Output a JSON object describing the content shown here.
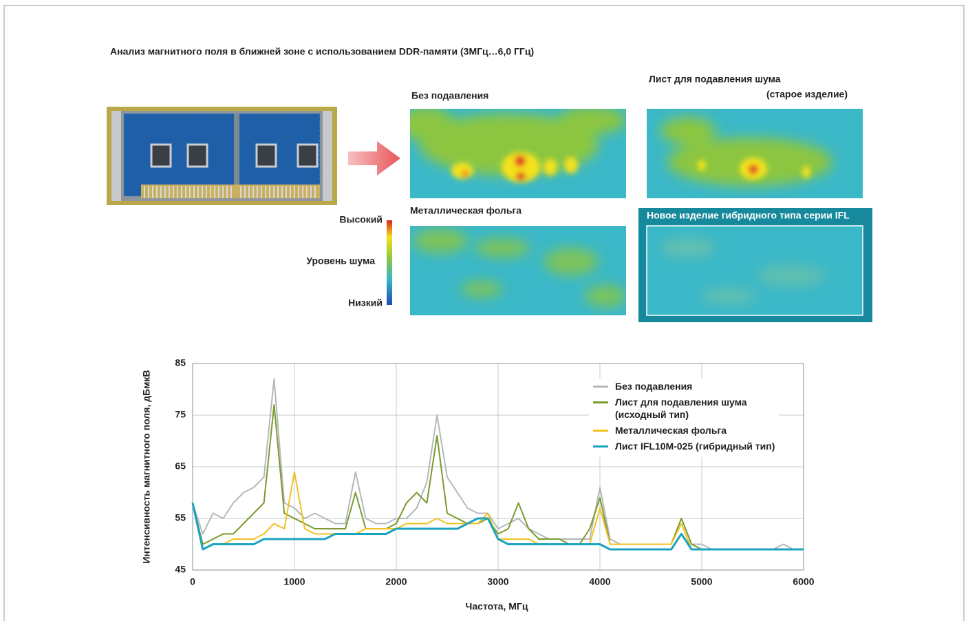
{
  "title": "Анализ магнитного поля в ближней зоне с использованием DDR-памяти (3МГц…6,0 ГГц)",
  "panels": [
    {
      "label": [
        "Без подавления"
      ]
    },
    {
      "label": [
        "Лист для подавления шума",
        "(старое изделие)"
      ]
    },
    {
      "label": [
        "Металлическая фольга"
      ]
    },
    {
      "label": [
        "Новое изделие гибридного типа серии IFL"
      ]
    }
  ],
  "colorbar": {
    "high": "Высокий",
    "mid": "Уровень шума",
    "low": "Низкий"
  },
  "chart_data": {
    "type": "line",
    "xlabel": "Частота, МГц",
    "ylabel": "Интенсивность магнитного поля, дБмкВ",
    "x": [
      0,
      100,
      200,
      300,
      400,
      500,
      600,
      700,
      800,
      900,
      1000,
      1100,
      1200,
      1300,
      1400,
      1500,
      1600,
      1700,
      1800,
      1900,
      2000,
      2100,
      2200,
      2300,
      2400,
      2500,
      2600,
      2700,
      2800,
      2900,
      3000,
      3100,
      3200,
      3300,
      3400,
      3500,
      3600,
      3700,
      3800,
      3900,
      4000,
      4100,
      4200,
      4300,
      4400,
      4500,
      4600,
      4700,
      4800,
      4900,
      5000,
      5100,
      5200,
      5300,
      5400,
      5500,
      5600,
      5700,
      5800,
      5900,
      6000
    ],
    "series": [
      {
        "name": "Без подавления",
        "color": "#b3b8bc",
        "values": [
          58,
          52,
          56,
          55,
          58,
          60,
          61,
          63,
          82,
          58,
          57,
          55,
          56,
          55,
          54,
          54,
          64,
          55,
          54,
          54,
          55,
          55,
          57,
          62,
          75,
          63,
          60,
          57,
          56,
          56,
          53,
          54,
          55,
          53,
          52,
          51,
          51,
          51,
          51,
          51,
          61,
          51,
          50,
          50,
          50,
          50,
          50,
          50,
          55,
          50,
          50,
          49,
          49,
          49,
          49,
          49,
          49,
          49,
          50,
          49,
          49
        ]
      },
      {
        "name": "Лист для подавления шума\n(исходный тип)",
        "color": "#7a9a2c",
        "values": [
          58,
          50,
          51,
          52,
          52,
          54,
          56,
          58,
          77,
          56,
          55,
          54,
          53,
          53,
          53,
          53,
          60,
          53,
          53,
          53,
          54,
          58,
          60,
          58,
          71,
          56,
          55,
          54,
          54,
          55,
          52,
          53,
          58,
          53,
          51,
          51,
          51,
          50,
          50,
          53,
          59,
          50,
          50,
          50,
          50,
          50,
          50,
          50,
          55,
          50,
          49,
          49,
          49,
          49,
          49,
          49,
          49,
          49,
          49,
          49,
          49
        ]
      },
      {
        "name": "Металлическая фольга",
        "color": "#f2c11e",
        "values": [
          58,
          49,
          50,
          50,
          51,
          51,
          51,
          52,
          54,
          53,
          64,
          53,
          52,
          52,
          52,
          52,
          52,
          53,
          53,
          53,
          53,
          54,
          54,
          54,
          55,
          54,
          54,
          54,
          54,
          56,
          51,
          51,
          51,
          51,
          50,
          50,
          50,
          50,
          50,
          50,
          57,
          50,
          50,
          50,
          50,
          50,
          50,
          50,
          54,
          49,
          49,
          49,
          49,
          49,
          49,
          49,
          49,
          49,
          49,
          49,
          49
        ]
      },
      {
        "name": "Лист IFL10M-025 (гибридный тип)",
        "color": "#1aa3bf",
        "values": [
          58,
          49,
          50,
          50,
          50,
          50,
          50,
          51,
          51,
          51,
          51,
          51,
          51,
          51,
          52,
          52,
          52,
          52,
          52,
          52,
          53,
          53,
          53,
          53,
          53,
          53,
          53,
          54,
          55,
          55,
          51,
          50,
          50,
          50,
          50,
          50,
          50,
          50,
          50,
          50,
          50,
          49,
          49,
          49,
          49,
          49,
          49,
          49,
          52,
          49,
          49,
          49,
          49,
          49,
          49,
          49,
          49,
          49,
          49,
          49,
          49
        ]
      }
    ],
    "xlim": [
      0,
      6000
    ],
    "xticks": [
      0,
      1000,
      2000,
      3000,
      4000,
      5000,
      6000
    ],
    "ylim": [
      45,
      85
    ],
    "yticks": [
      45,
      55,
      65,
      75,
      85
    ],
    "grid": true,
    "legend": "upper right"
  }
}
